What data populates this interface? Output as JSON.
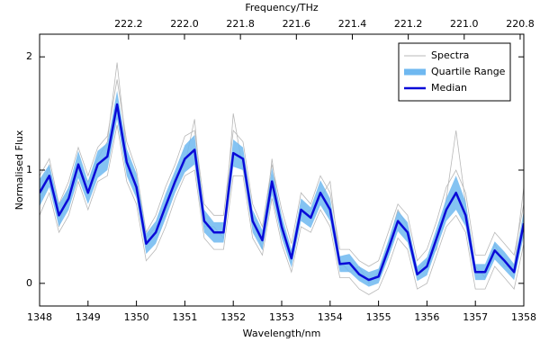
{
  "chart_data": {
    "type": "spectra",
    "xlabel": "Wavelength/nm",
    "ylabel": "Normalised Flux",
    "x2label": "Frequency/THz",
    "xlim": [
      1348,
      1358
    ],
    "xticks": [
      1348,
      1349,
      1350,
      1351,
      1352,
      1353,
      1354,
      1355,
      1356,
      1357,
      1358
    ],
    "ylim": [
      -0.2,
      2.2
    ],
    "yticks": [
      0,
      1,
      2
    ],
    "x2lim": [
      222.518,
      220.787
    ],
    "x2ticks": [
      222.2,
      {
        "value": 222,
        "label": "222.0"
      },
      221.8,
      221.6,
      221.4,
      221.2,
      {
        "value": 221,
        "label": "221.0"
      },
      220.8
    ],
    "x": [
      1348,
      1348.2,
      1348.4,
      1348.6,
      1348.8,
      1349,
      1349.2,
      1349.4,
      1349.6,
      1349.8,
      1350,
      1350.2,
      1350.4,
      1350.6,
      1350.8,
      1351,
      1351.2,
      1351.4,
      1351.6,
      1351.8,
      1352,
      1352.2,
      1352.4,
      1352.6,
      1352.8,
      1353,
      1353.2,
      1353.4,
      1353.6,
      1353.8,
      1354,
      1354.2,
      1354.4,
      1354.6,
      1354.8,
      1355,
      1355.2,
      1355.4,
      1355.6,
      1355.8,
      1356,
      1356.2,
      1356.4,
      1356.6,
      1356.8,
      1357,
      1357.2,
      1357.4,
      1357.6,
      1357.8,
      1358
    ],
    "spectra": {
      "name": "Spectra",
      "color": "#b8b8b8",
      "lines": [
        [
          0.95,
          1.1,
          0.7,
          0.9,
          1.2,
          0.95,
          1.2,
          1.3,
          1.8,
          1.25,
          1.0,
          0.45,
          0.6,
          0.85,
          1.05,
          1.3,
          1.35,
          0.7,
          0.6,
          0.6,
          1.35,
          1.25,
          0.7,
          0.5,
          1.05,
          0.65,
          0.35,
          0.8,
          0.7,
          0.95,
          0.8,
          0.3,
          0.3,
          0.2,
          0.15,
          0.2,
          0.45,
          0.7,
          0.6,
          0.2,
          0.3,
          0.55,
          0.85,
          1.0,
          0.8,
          0.25,
          0.25,
          0.45,
          0.35,
          0.25,
          0.7
        ],
        [
          0.6,
          0.8,
          0.45,
          0.6,
          0.9,
          0.65,
          0.9,
          0.95,
          1.4,
          0.9,
          0.7,
          0.2,
          0.3,
          0.5,
          0.75,
          0.95,
          1.0,
          0.4,
          0.3,
          0.3,
          0.95,
          0.95,
          0.4,
          0.25,
          0.75,
          0.35,
          0.1,
          0.5,
          0.45,
          0.65,
          0.5,
          0.05,
          0.05,
          -0.05,
          -0.1,
          -0.05,
          0.15,
          0.4,
          0.3,
          -0.05,
          0.0,
          0.25,
          0.5,
          0.6,
          0.45,
          -0.05,
          -0.05,
          0.15,
          0.05,
          -0.05,
          0.35
        ],
        [
          0.7,
          1.05,
          0.5,
          0.85,
          1.0,
          0.9,
          1.1,
          1.25,
          1.95,
          1.15,
          0.8,
          0.4,
          0.5,
          0.6,
          0.95,
          1.05,
          1.45,
          0.5,
          0.5,
          0.4,
          1.5,
          1.0,
          0.6,
          0.3,
          1.1,
          0.45,
          0.25,
          0.6,
          0.65,
          0.75,
          0.9,
          0.2,
          0.1,
          0.15,
          0.0,
          0.1,
          0.35,
          0.65,
          0.5,
          0.1,
          0.2,
          0.3,
          0.75,
          1.35,
          0.7,
          0.15,
          0.05,
          0.35,
          0.15,
          0.15,
          0.85
        ]
      ]
    },
    "band": {
      "name": "Quartile Range",
      "color": "#6fb8f0",
      "lower": [
        0.68,
        0.85,
        0.5,
        0.65,
        0.93,
        0.7,
        0.93,
        1.0,
        1.45,
        0.95,
        0.75,
        0.26,
        0.35,
        0.57,
        0.8,
        0.98,
        1.05,
        0.45,
        0.36,
        0.36,
        1.03,
        1.0,
        0.45,
        0.29,
        0.78,
        0.4,
        0.14,
        0.55,
        0.49,
        0.69,
        0.55,
        0.1,
        0.1,
        0.02,
        -0.03,
        0.0,
        0.22,
        0.46,
        0.36,
        0.02,
        0.07,
        0.31,
        0.55,
        0.65,
        0.5,
        0.03,
        0.03,
        0.21,
        0.12,
        0.03,
        0.42
      ],
      "upper": [
        0.92,
        1.05,
        0.7,
        0.85,
        1.17,
        0.9,
        1.17,
        1.24,
        1.7,
        1.19,
        0.97,
        0.44,
        0.55,
        0.79,
        1.0,
        1.22,
        1.31,
        0.65,
        0.54,
        0.54,
        1.27,
        1.2,
        0.65,
        0.47,
        1.02,
        0.6,
        0.3,
        0.75,
        0.67,
        0.91,
        0.75,
        0.24,
        0.26,
        0.15,
        0.1,
        0.13,
        0.38,
        0.64,
        0.54,
        0.15,
        0.23,
        0.49,
        0.75,
        0.95,
        0.72,
        0.17,
        0.17,
        0.37,
        0.28,
        0.17,
        0.64
      ]
    },
    "median": {
      "name": "Median",
      "color": "#0a0ad8",
      "values": [
        0.8,
        0.95,
        0.6,
        0.75,
        1.05,
        0.8,
        1.05,
        1.12,
        1.58,
        1.07,
        0.85,
        0.35,
        0.45,
        0.68,
        0.9,
        1.1,
        1.18,
        0.55,
        0.45,
        0.45,
        1.15,
        1.1,
        0.55,
        0.38,
        0.9,
        0.5,
        0.22,
        0.65,
        0.58,
        0.8,
        0.65,
        0.17,
        0.18,
        0.08,
        0.03,
        0.06,
        0.3,
        0.55,
        0.45,
        0.08,
        0.15,
        0.4,
        0.65,
        0.8,
        0.6,
        0.1,
        0.1,
        0.29,
        0.2,
        0.1,
        0.53
      ]
    }
  }
}
